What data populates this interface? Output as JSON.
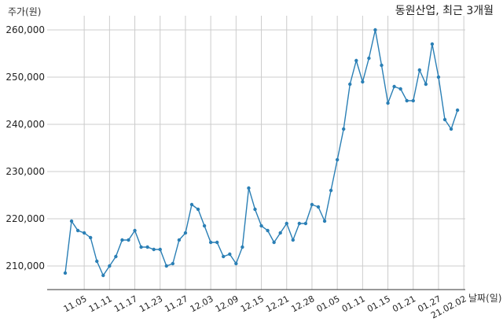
{
  "chart_data": {
    "type": "line",
    "title": "동원산업, 최근 3개월",
    "xlabel": "날짜(일)",
    "ylabel": "주가(원)",
    "ylim": [
      205000,
      263000
    ],
    "grid": true,
    "colors": {
      "line": "#2a7fb5",
      "marker": "#2a7fb5",
      "grid": "#cccccc",
      "axis": "#333333"
    },
    "y_ticks": [
      {
        "value": 210000,
        "label": "210,000"
      },
      {
        "value": 220000,
        "label": "220,000"
      },
      {
        "value": 230000,
        "label": "230,000"
      },
      {
        "value": 240000,
        "label": "240,000"
      },
      {
        "value": 250000,
        "label": "250,000"
      },
      {
        "value": 260000,
        "label": "260,000"
      }
    ],
    "x_ticks": [
      {
        "index": 3,
        "label": "11.05"
      },
      {
        "index": 7,
        "label": "11.11"
      },
      {
        "index": 11,
        "label": "11.17"
      },
      {
        "index": 15,
        "label": "11.23"
      },
      {
        "index": 19,
        "label": "11.27"
      },
      {
        "index": 23,
        "label": "12.03"
      },
      {
        "index": 27,
        "label": "12.09"
      },
      {
        "index": 31,
        "label": "12.15"
      },
      {
        "index": 35,
        "label": "12.21"
      },
      {
        "index": 39,
        "label": "12.28"
      },
      {
        "index": 43,
        "label": "01.05"
      },
      {
        "index": 47,
        "label": "01.11"
      },
      {
        "index": 51,
        "label": "01.15"
      },
      {
        "index": 55,
        "label": "01.21"
      },
      {
        "index": 59,
        "label": "01.27"
      },
      {
        "index": 63,
        "label": "21.02.02"
      }
    ],
    "series": [
      {
        "values": [
          208500,
          219500,
          217500,
          217000,
          216000,
          211000,
          208000,
          210000,
          212000,
          215500,
          215500,
          217500,
          214000,
          214000,
          213500,
          213500,
          210000,
          210500,
          215500,
          217000,
          223000,
          222000,
          218500,
          215000,
          215000,
          212000,
          212500,
          210500,
          214000,
          226500,
          222000,
          218500,
          217500,
          215000,
          217000,
          219000,
          215500,
          219000,
          219000,
          223000,
          222500,
          219500,
          226000,
          232500,
          239000,
          248500,
          253500,
          249000,
          254000,
          260000,
          252500,
          244500,
          248000,
          247500,
          245000,
          245000,
          251500,
          248500,
          257000,
          250000,
          241000,
          239000,
          243000
        ]
      }
    ]
  }
}
